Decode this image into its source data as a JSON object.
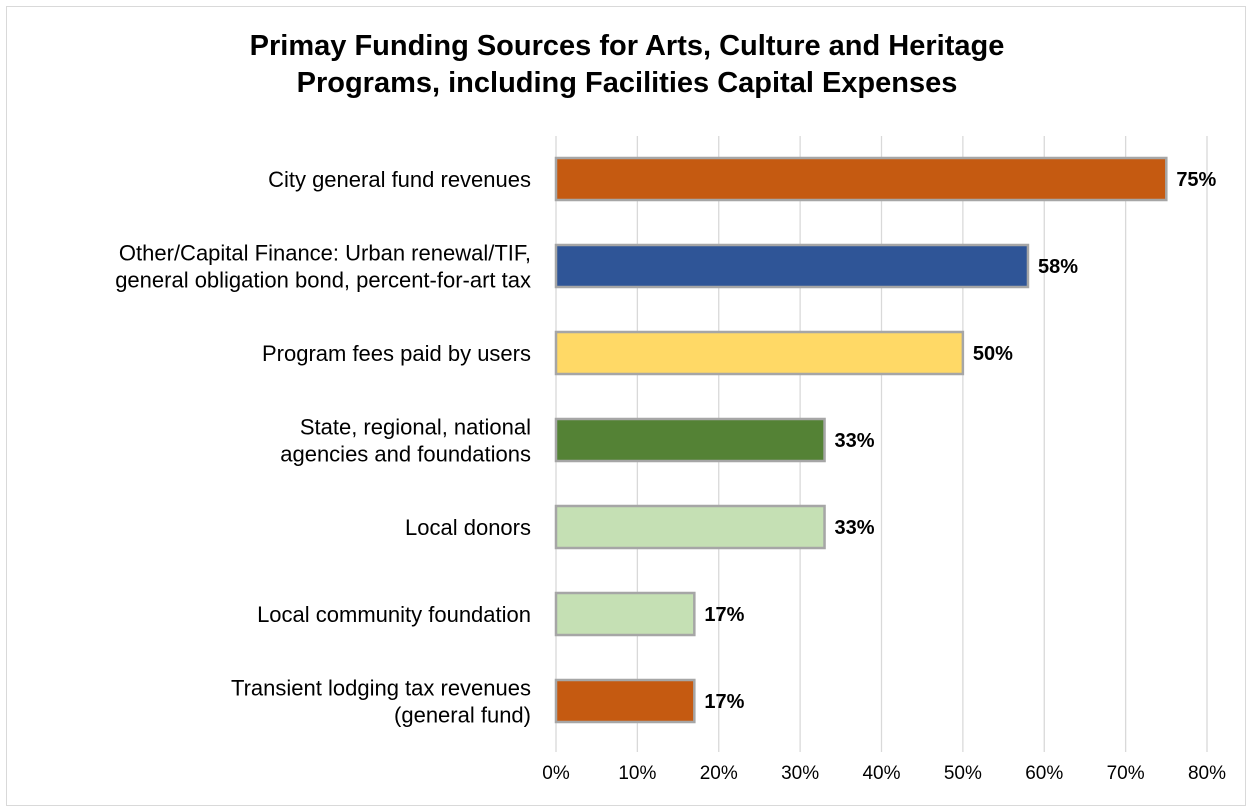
{
  "chart_data": {
    "type": "bar",
    "orientation": "horizontal",
    "title_lines": [
      "Primay Funding Sources for Arts, Culture and Heritage",
      "Programs, including Facilities Capital Expenses"
    ],
    "categories": [
      [
        "City general fund revenues"
      ],
      [
        "Other/Capital Finance: Urban renewal/TIF,",
        "general obligation bond, percent-for-art tax"
      ],
      [
        "Program fees paid by users"
      ],
      [
        "State, regional, national",
        "agencies and foundations"
      ],
      [
        "Local donors"
      ],
      [
        "Local community foundation"
      ],
      [
        "Transient lodging tax revenues",
        "(general fund)"
      ]
    ],
    "values": [
      75,
      58,
      50,
      33,
      33,
      17,
      17
    ],
    "data_labels": [
      "75%",
      "58%",
      "50%",
      "33%",
      "33%",
      "17%",
      "17%"
    ],
    "bar_colors": [
      "#c55a11",
      "#2f5597",
      "#ffd966",
      "#548235",
      "#c5e0b4",
      "#c5e0b4",
      "#c55a11"
    ],
    "xlim": [
      0,
      80
    ],
    "xticks": [
      0,
      10,
      20,
      30,
      40,
      50,
      60,
      70,
      80
    ],
    "xtick_labels": [
      "0%",
      "10%",
      "20%",
      "30%",
      "40%",
      "50%",
      "60%",
      "70%",
      "80%"
    ],
    "grid": true,
    "gridline_color": "#d9d9d9",
    "bar_border_color": "#a6a6a6",
    "legend": false
  }
}
